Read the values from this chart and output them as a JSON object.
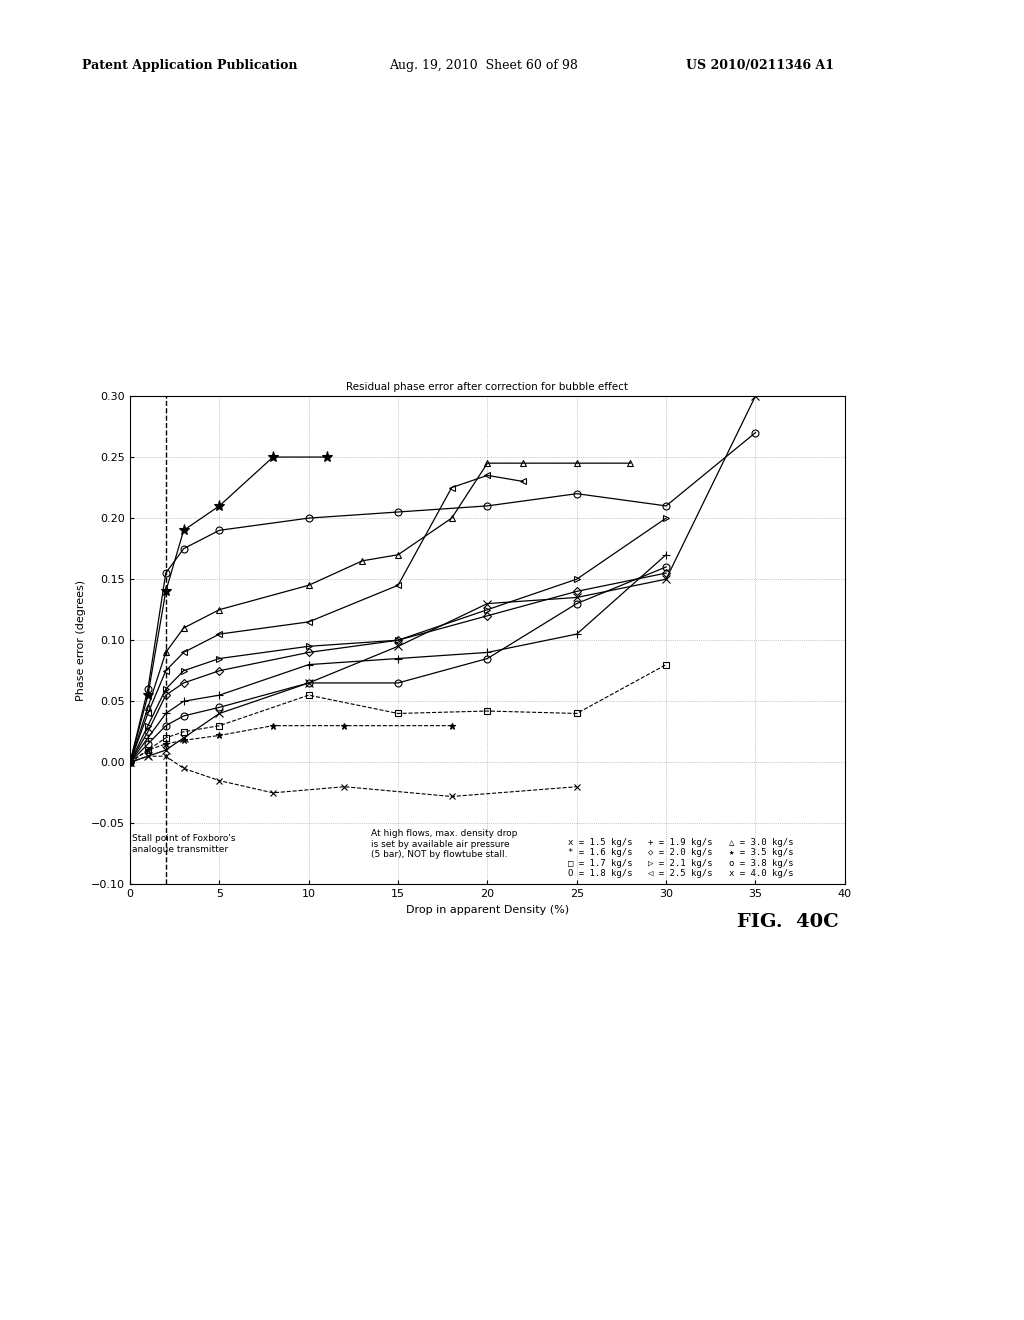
{
  "title": "Residual phase error after correction for bubble effect",
  "xlabel": "Drop in apparent Density (%)",
  "ylabel": "Phase error (degrees)",
  "xlim": [
    0,
    40
  ],
  "ylim": [
    -0.1,
    0.3
  ],
  "xticks": [
    0,
    5,
    10,
    15,
    20,
    25,
    30,
    35,
    40
  ],
  "yticks": [
    -0.1,
    -0.05,
    0,
    0.05,
    0.1,
    0.15,
    0.2,
    0.25,
    0.3
  ],
  "dashed_vline_x": 2,
  "fig_label": "FIG. 40C",
  "header_left": "Patent Application Publication",
  "header_mid": "Aug. 19, 2010  Sheet 60 of 98",
  "header_right": "US 2010/0211346 A1",
  "annotation_stall": "Stall point of Foxboro's\nanalogue transmitter",
  "annotation_note": "At high flows, max. density drop\nis set by available air pressure\n(5 bar), NOT by flowtube stall.",
  "legend_col1": "x = 1.5 kg/s\n* = 1.6 kg/s\no = 1.7 kg/s\nO = 1.8 kg/s",
  "legend_col2": "+ = 1.9 kg/s\no = 2.0 kg/s\n> = 2.1 kg/s\n< = 2.5 kg/s",
  "legend_col3": "^ = 3.0 kg/s\n* = 3.5 kg/s\no = 3.8 kg/s\nx = 4.0 kg/s",
  "series": [
    {
      "label": "x_1.5",
      "marker": "x",
      "ls": "--",
      "ms": 5,
      "lw": 0.8,
      "x": [
        0,
        1,
        2,
        3,
        5,
        8,
        12,
        18,
        25
      ],
      "y": [
        0,
        0.005,
        0.005,
        -0.005,
        -0.015,
        -0.025,
        -0.02,
        -0.028,
        -0.02
      ]
    },
    {
      "label": "star_1.6",
      "marker": "*",
      "ls": "--",
      "ms": 5,
      "lw": 0.8,
      "x": [
        0,
        1,
        2,
        3,
        5,
        8,
        12,
        18
      ],
      "y": [
        0,
        0.01,
        0.015,
        0.018,
        0.022,
        0.03,
        0.03,
        0.03
      ]
    },
    {
      "label": "sq_1.7",
      "marker": "s",
      "ls": "--",
      "ms": 4,
      "lw": 0.8,
      "x": [
        0,
        1,
        2,
        3,
        5,
        10,
        15,
        20,
        25,
        30
      ],
      "y": [
        0,
        0.01,
        0.02,
        0.025,
        0.03,
        0.055,
        0.04,
        0.042,
        0.04,
        0.08
      ]
    },
    {
      "label": "circ_1.8",
      "marker": "o",
      "ls": "-",
      "ms": 5,
      "lw": 0.9,
      "x": [
        0,
        1,
        2,
        3,
        5,
        10,
        15,
        20,
        25,
        30
      ],
      "y": [
        0,
        0.015,
        0.03,
        0.038,
        0.045,
        0.065,
        0.065,
        0.085,
        0.13,
        0.16
      ]
    },
    {
      "label": "plus_1.9",
      "marker": "+",
      "ls": "-",
      "ms": 6,
      "lw": 0.9,
      "x": [
        0,
        1,
        2,
        3,
        5,
        10,
        15,
        20,
        25,
        30
      ],
      "y": [
        0,
        0.02,
        0.04,
        0.05,
        0.055,
        0.08,
        0.085,
        0.09,
        0.105,
        0.17
      ]
    },
    {
      "label": "diam_2.0",
      "marker": "D",
      "ls": "-",
      "ms": 4,
      "lw": 0.9,
      "x": [
        0,
        1,
        2,
        3,
        5,
        10,
        15,
        20,
        25,
        30
      ],
      "y": [
        0,
        0.025,
        0.055,
        0.065,
        0.075,
        0.09,
        0.1,
        0.12,
        0.14,
        0.155
      ]
    },
    {
      "label": "rtri_2.1",
      "marker": ">",
      "ls": "-",
      "ms": 4,
      "lw": 0.9,
      "x": [
        0,
        1,
        2,
        3,
        5,
        10,
        15,
        20,
        25,
        30
      ],
      "y": [
        0,
        0.03,
        0.06,
        0.075,
        0.085,
        0.095,
        0.1,
        0.125,
        0.15,
        0.2
      ]
    },
    {
      "label": "ltri_2.5",
      "marker": "<",
      "ls": "-",
      "ms": 4,
      "lw": 0.9,
      "x": [
        0,
        1,
        2,
        3,
        5,
        10,
        15,
        18,
        20,
        22
      ],
      "y": [
        0,
        0.04,
        0.075,
        0.09,
        0.105,
        0.115,
        0.145,
        0.225,
        0.235,
        0.23
      ]
    },
    {
      "label": "utri_3.0",
      "marker": "^",
      "ls": "-",
      "ms": 5,
      "lw": 0.9,
      "x": [
        0,
        1,
        2,
        3,
        5,
        10,
        13,
        15,
        18,
        20,
        22,
        25,
        28
      ],
      "y": [
        0,
        0.045,
        0.09,
        0.11,
        0.125,
        0.145,
        0.165,
        0.17,
        0.2,
        0.245,
        0.245,
        0.245,
        0.245
      ]
    },
    {
      "label": "star6_3.5",
      "marker": "*",
      "ls": "-",
      "ms": 8,
      "lw": 0.9,
      "x": [
        0,
        1,
        2,
        3,
        5,
        8,
        11
      ],
      "y": [
        0,
        0.055,
        0.14,
        0.19,
        0.21,
        0.25,
        0.25
      ]
    },
    {
      "label": "hex_3.8",
      "marker": "o",
      "ls": "-",
      "ms": 5,
      "lw": 0.9,
      "x": [
        0,
        1,
        2,
        3,
        5,
        10,
        15,
        20,
        25,
        30,
        35
      ],
      "y": [
        0,
        0.06,
        0.155,
        0.175,
        0.19,
        0.2,
        0.205,
        0.21,
        0.22,
        0.21,
        0.27
      ]
    },
    {
      "label": "x_4.0",
      "marker": "x",
      "ls": "-",
      "ms": 6,
      "lw": 0.9,
      "x": [
        0,
        1,
        2,
        3,
        5,
        10,
        15,
        20,
        25,
        30,
        35
      ],
      "y": [
        0,
        0.005,
        0.01,
        0.02,
        0.04,
        0.065,
        0.095,
        0.13,
        0.135,
        0.15,
        0.3
      ]
    }
  ]
}
